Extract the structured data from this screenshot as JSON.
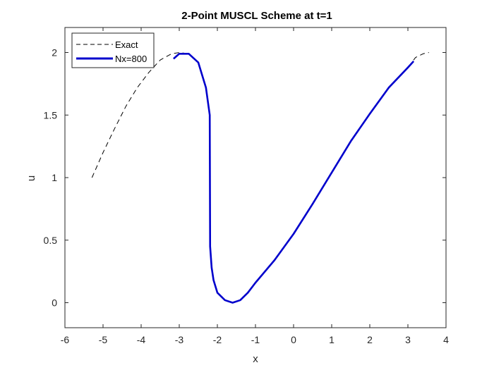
{
  "chart_data": {
    "type": "line",
    "title": "2-Point MUSCL Scheme at t=1",
    "xlabel": "x",
    "ylabel": "u",
    "xlim": [
      -6,
      4
    ],
    "ylim": [
      -0.2,
      2.2
    ],
    "x_ticks": [
      -6,
      -5,
      -4,
      -3,
      -2,
      -1,
      0,
      1,
      2,
      3,
      4
    ],
    "y_ticks": [
      0,
      0.5,
      1,
      1.5,
      2
    ],
    "x_tick_labels": [
      "-6",
      "-5",
      "-4",
      "-3",
      "-2",
      "-1",
      "0",
      "1",
      "2",
      "3",
      "4"
    ],
    "y_tick_labels": [
      "0",
      "0.5",
      "1",
      "1.5",
      "2"
    ],
    "grid": false,
    "legend_position": "top-left",
    "series": [
      {
        "name": "Exact",
        "style": "dashed",
        "color": "#000000",
        "x": [
          -5.29,
          -5.0,
          -4.7,
          -4.4,
          -4.1,
          -3.8,
          -3.5,
          -3.2,
          -3.0,
          -2.75,
          -2.5,
          -2.3,
          -2.2,
          -2.19,
          -2.15,
          -2.1,
          -2.0,
          -1.8,
          -1.6,
          -1.4,
          -1.2,
          -1.0,
          -0.5,
          0.0,
          0.5,
          1.0,
          1.5,
          2.0,
          2.5,
          3.0,
          3.2,
          3.4,
          3.55
        ],
        "y": [
          1.0,
          1.2,
          1.39,
          1.57,
          1.72,
          1.84,
          1.94,
          1.99,
          2.0,
          1.99,
          1.92,
          1.72,
          1.5,
          0.45,
          0.28,
          0.18,
          0.08,
          0.02,
          0.0,
          0.02,
          0.08,
          0.16,
          0.34,
          0.55,
          0.79,
          1.04,
          1.29,
          1.51,
          1.72,
          1.88,
          1.96,
          1.99,
          2.0
        ]
      },
      {
        "name": "Nx=800",
        "style": "solid",
        "color": "#0000cc",
        "x": [
          -3.15,
          -3.0,
          -2.75,
          -2.5,
          -2.3,
          -2.2,
          -2.19,
          -2.15,
          -2.1,
          -2.0,
          -1.8,
          -1.6,
          -1.4,
          -1.2,
          -1.0,
          -0.5,
          0.0,
          0.5,
          1.0,
          1.5,
          2.0,
          2.5,
          3.0,
          3.15
        ],
        "y": [
          1.95,
          1.99,
          1.99,
          1.92,
          1.72,
          1.5,
          0.45,
          0.28,
          0.18,
          0.08,
          0.02,
          0.0,
          0.02,
          0.08,
          0.16,
          0.34,
          0.55,
          0.79,
          1.04,
          1.29,
          1.51,
          1.72,
          1.88,
          1.93
        ]
      }
    ]
  },
  "colors": {
    "axis": "#262626",
    "exact_line": "#000000",
    "numeric_line": "#0000cc"
  }
}
